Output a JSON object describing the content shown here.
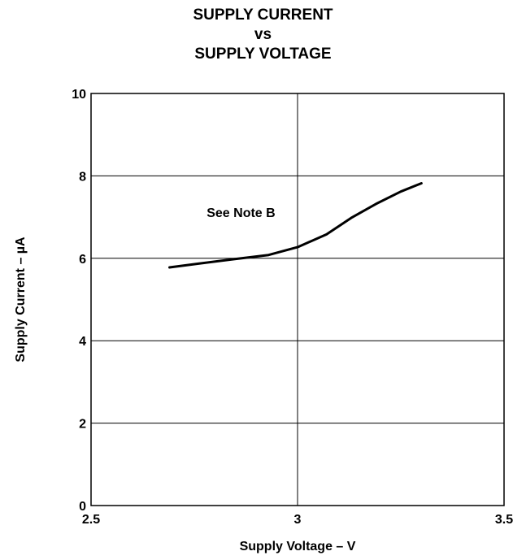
{
  "chart_data": {
    "type": "line",
    "title": [
      "SUPPLY CURRENT",
      "vs",
      "SUPPLY VOLTAGE"
    ],
    "xlabel": "Supply Voltage – V",
    "ylabel": "Supply Current – µA",
    "xlim": [
      2.5,
      3.5
    ],
    "ylim": [
      0,
      10
    ],
    "x_ticks": [
      2.5,
      3,
      3.5
    ],
    "y_ticks": [
      0,
      2,
      4,
      6,
      8,
      10
    ],
    "x_tick_labels": [
      "2.5",
      "3",
      "3.5"
    ],
    "y_tick_labels": [
      "0",
      "2",
      "4",
      "6",
      "8",
      "10"
    ],
    "grid": true,
    "annotation": {
      "text": "See Note B",
      "x": 2.78,
      "y": 7.1
    },
    "series": [
      {
        "x": [
          2.69,
          2.76,
          2.84,
          2.93,
          3.0,
          3.07,
          3.13,
          3.19,
          3.25,
          3.3
        ],
        "y": [
          5.78,
          5.87,
          5.97,
          6.08,
          6.27,
          6.58,
          6.98,
          7.32,
          7.62,
          7.82
        ]
      }
    ],
    "line_color": "#000000"
  }
}
